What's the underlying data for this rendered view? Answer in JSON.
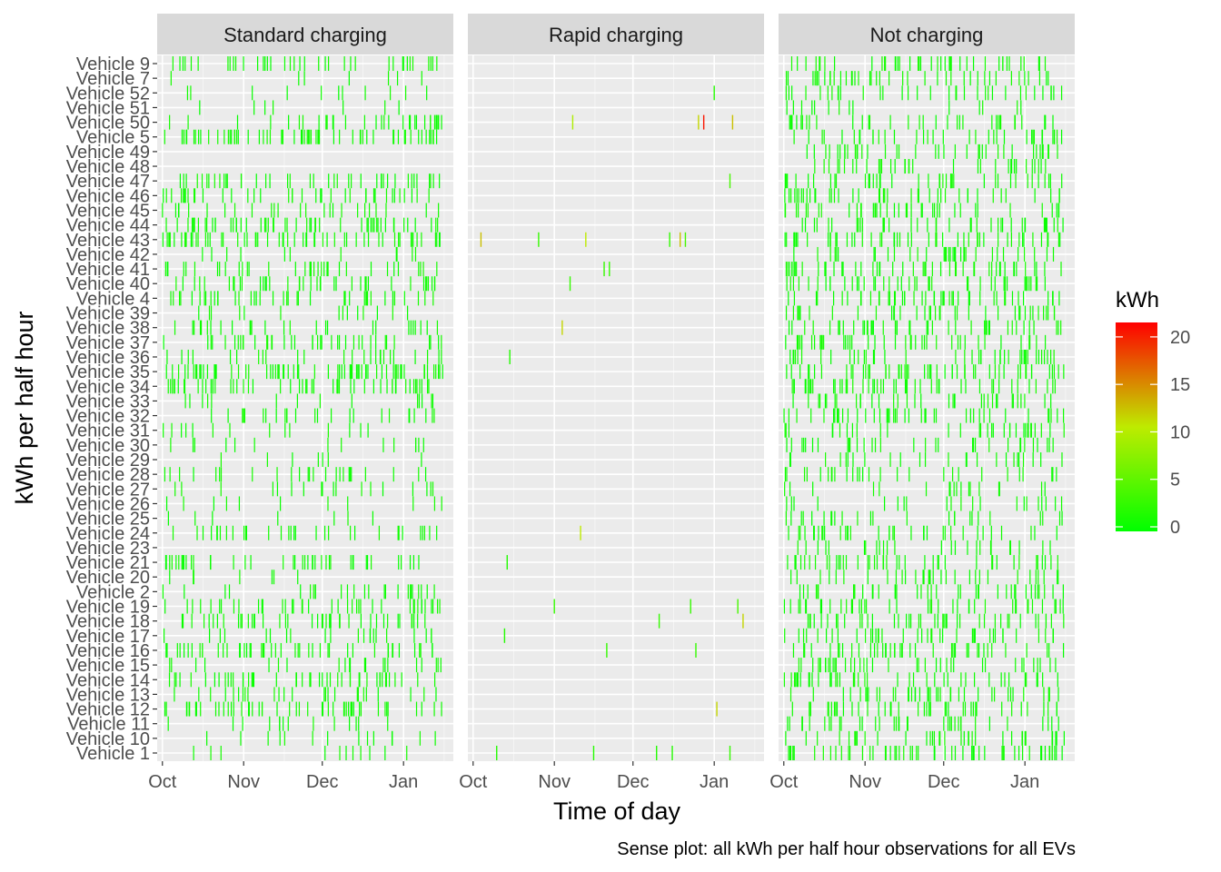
{
  "chart_data": {
    "type": "heatmap",
    "title": "",
    "xlabel": "Time of day",
    "ylabel": "kWh per half hour",
    "caption": "Sense plot: all kWh per half hour observations for all EVs",
    "facets": [
      "Standard charging",
      "Rapid charging",
      "Not charging"
    ],
    "x_ticks": [
      "Oct",
      "Nov",
      "Dec",
      "Jan"
    ],
    "x_range": [
      "2018-09-29",
      "2019-01-20"
    ],
    "vehicles": [
      "Vehicle 1",
      "Vehicle 10",
      "Vehicle 11",
      "Vehicle 12",
      "Vehicle 13",
      "Vehicle 14",
      "Vehicle 15",
      "Vehicle 16",
      "Vehicle 17",
      "Vehicle 18",
      "Vehicle 19",
      "Vehicle 2",
      "Vehicle 20",
      "Vehicle 21",
      "Vehicle 23",
      "Vehicle 24",
      "Vehicle 25",
      "Vehicle 26",
      "Vehicle 27",
      "Vehicle 28",
      "Vehicle 29",
      "Vehicle 30",
      "Vehicle 31",
      "Vehicle 32",
      "Vehicle 33",
      "Vehicle 34",
      "Vehicle 35",
      "Vehicle 36",
      "Vehicle 37",
      "Vehicle 38",
      "Vehicle 39",
      "Vehicle 4",
      "Vehicle 40",
      "Vehicle 41",
      "Vehicle 42",
      "Vehicle 43",
      "Vehicle 44",
      "Vehicle 45",
      "Vehicle 46",
      "Vehicle 47",
      "Vehicle 48",
      "Vehicle 49",
      "Vehicle 5",
      "Vehicle 50",
      "Vehicle 51",
      "Vehicle 52",
      "Vehicle 7",
      "Vehicle 9"
    ],
    "legend": {
      "title": "kWh",
      "breaks": [
        0,
        5,
        10,
        15,
        20
      ],
      "range": [
        0,
        22
      ],
      "colors": [
        "#00ff00",
        "#ff0000"
      ]
    },
    "rapid_points": [
      {
        "vehicle": "Vehicle 50",
        "date": "2018-11-08",
        "kwh": 10
      },
      {
        "vehicle": "Vehicle 50",
        "date": "2018-12-26",
        "kwh": 12
      },
      {
        "vehicle": "Vehicle 50",
        "date": "2018-12-28",
        "kwh": 21
      },
      {
        "vehicle": "Vehicle 50",
        "date": "2019-01-08",
        "kwh": 13
      },
      {
        "vehicle": "Vehicle 52",
        "date": "2019-01-01",
        "kwh": 2
      },
      {
        "vehicle": "Vehicle 47",
        "date": "2019-01-07",
        "kwh": 4
      },
      {
        "vehicle": "Vehicle 43",
        "date": "2018-10-04",
        "kwh": 13
      },
      {
        "vehicle": "Vehicle 43",
        "date": "2018-10-26",
        "kwh": 3
      },
      {
        "vehicle": "Vehicle 43",
        "date": "2018-11-13",
        "kwh": 11
      },
      {
        "vehicle": "Vehicle 43",
        "date": "2018-12-15",
        "kwh": 3
      },
      {
        "vehicle": "Vehicle 43",
        "date": "2018-12-19",
        "kwh": 13
      },
      {
        "vehicle": "Vehicle 43",
        "date": "2018-12-21",
        "kwh": 4
      },
      {
        "vehicle": "Vehicle 41",
        "date": "2018-11-20",
        "kwh": 3
      },
      {
        "vehicle": "Vehicle 41",
        "date": "2018-11-22",
        "kwh": 3
      },
      {
        "vehicle": "Vehicle 40",
        "date": "2018-11-07",
        "kwh": 3
      },
      {
        "vehicle": "Vehicle 38",
        "date": "2018-11-04",
        "kwh": 12
      },
      {
        "vehicle": "Vehicle 36",
        "date": "2018-10-15",
        "kwh": 2
      },
      {
        "vehicle": "Vehicle 24",
        "date": "2018-11-11",
        "kwh": 11
      },
      {
        "vehicle": "Vehicle 21",
        "date": "2018-10-14",
        "kwh": 2
      },
      {
        "vehicle": "Vehicle 19",
        "date": "2018-11-01",
        "kwh": 3
      },
      {
        "vehicle": "Vehicle 19",
        "date": "2018-12-23",
        "kwh": 3
      },
      {
        "vehicle": "Vehicle 19",
        "date": "2019-01-10",
        "kwh": 4
      },
      {
        "vehicle": "Vehicle 18",
        "date": "2018-12-11",
        "kwh": 3
      },
      {
        "vehicle": "Vehicle 18",
        "date": "2019-01-12",
        "kwh": 12
      },
      {
        "vehicle": "Vehicle 17",
        "date": "2018-10-13",
        "kwh": 2
      },
      {
        "vehicle": "Vehicle 16",
        "date": "2018-11-21",
        "kwh": 3
      },
      {
        "vehicle": "Vehicle 16",
        "date": "2018-12-25",
        "kwh": 3
      },
      {
        "vehicle": "Vehicle 12",
        "date": "2019-01-02",
        "kwh": 12
      },
      {
        "vehicle": "Vehicle 1",
        "date": "2018-10-10",
        "kwh": 2
      },
      {
        "vehicle": "Vehicle 1",
        "date": "2018-11-16",
        "kwh": 2
      },
      {
        "vehicle": "Vehicle 1",
        "date": "2018-12-10",
        "kwh": 2
      },
      {
        "vehicle": "Vehicle 1",
        "date": "2018-12-16",
        "kwh": 2
      },
      {
        "vehicle": "Vehicle 1",
        "date": "2019-01-07",
        "kwh": 3
      }
    ],
    "activity": {
      "Standard charging": {
        "Vehicle 9": 0.55,
        "Vehicle 7": 0.1,
        "Vehicle 52": 0.15,
        "Vehicle 51": 0.1,
        "Vehicle 50": 0.45,
        "Vehicle 5": 0.9,
        "Vehicle 49": 0,
        "Vehicle 48": 0,
        "Vehicle 47": 0.6,
        "Vehicle 46": 0.55,
        "Vehicle 45": 0.35,
        "Vehicle 44": 0.75,
        "Vehicle 43": 0.85,
        "Vehicle 42": 0.15,
        "Vehicle 41": 0.5,
        "Vehicle 40": 0.55,
        "Vehicle 4": 0.6,
        "Vehicle 39": 0.2,
        "Vehicle 38": 0.4,
        "Vehicle 37": 0.55,
        "Vehicle 36": 0.35,
        "Vehicle 35": 1.0,
        "Vehicle 34": 0.8,
        "Vehicle 33": 0.2,
        "Vehicle 32": 0.35,
        "Vehicle 31": 0.2,
        "Vehicle 30": 0.2,
        "Vehicle 29": 0.1,
        "Vehicle 28": 0.35,
        "Vehicle 27": 0.25,
        "Vehicle 26": 0.15,
        "Vehicle 25": 0.1,
        "Vehicle 24": 0.45,
        "Vehicle 23": 0,
        "Vehicle 21": 0.6,
        "Vehicle 20": 0.1,
        "Vehicle 2": 0.35,
        "Vehicle 19": 0.55,
        "Vehicle 18": 0.6,
        "Vehicle 17": 0.3,
        "Vehicle 16": 0.65,
        "Vehicle 15": 0.3,
        "Vehicle 14": 0.65,
        "Vehicle 13": 0.35,
        "Vehicle 12": 0.7,
        "Vehicle 11": 0.2,
        "Vehicle 10": 0.2,
        "Vehicle 1": 0.15
      },
      "Not charging": {
        "Vehicle 9": 0.6,
        "Vehicle 7": 0.6,
        "Vehicle 52": 0.5,
        "Vehicle 51": 0.2,
        "Vehicle 50": 0.5,
        "Vehicle 5": 0.5,
        "Vehicle 49": 0.55,
        "Vehicle 48": 0.5,
        "Vehicle 47": 0.6,
        "Vehicle 46": 0.6,
        "Vehicle 45": 0.55,
        "Vehicle 44": 0.55,
        "Vehicle 43": 0.7,
        "Vehicle 42": 0.5,
        "Vehicle 41": 0.7,
        "Vehicle 40": 0.6,
        "Vehicle 4": 0.65,
        "Vehicle 39": 0.55,
        "Vehicle 38": 0.6,
        "Vehicle 37": 0.6,
        "Vehicle 36": 0.6,
        "Vehicle 35": 0.75,
        "Vehicle 34": 0.7,
        "Vehicle 33": 0.5,
        "Vehicle 32": 0.6,
        "Vehicle 31": 0.45,
        "Vehicle 30": 0.45,
        "Vehicle 29": 0.35,
        "Vehicle 28": 0.4,
        "Vehicle 27": 0.25,
        "Vehicle 26": 0.3,
        "Vehicle 25": 0.35,
        "Vehicle 24": 0.5,
        "Vehicle 23": 0.35,
        "Vehicle 21": 0.6,
        "Vehicle 20": 0.45,
        "Vehicle 2": 0.55,
        "Vehicle 19": 0.6,
        "Vehicle 18": 0.6,
        "Vehicle 17": 0.55,
        "Vehicle 16": 0.6,
        "Vehicle 15": 0.55,
        "Vehicle 14": 0.6,
        "Vehicle 13": 0.55,
        "Vehicle 12": 0.6,
        "Vehicle 11": 0.5,
        "Vehicle 10": 0.5,
        "Vehicle 1": 0.8
      }
    }
  }
}
